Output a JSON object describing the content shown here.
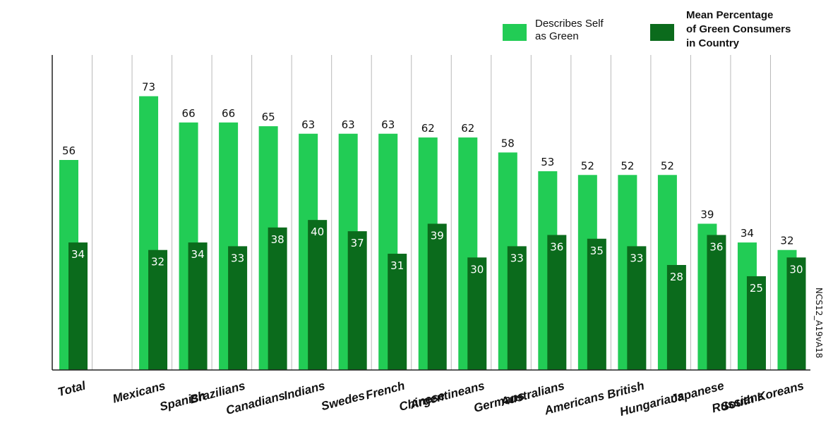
{
  "colors": {
    "light": "#22cc55",
    "dark": "#0b6b1c",
    "grid": "#b9b9b9",
    "axis": "#222222"
  },
  "legend": {
    "describes_label_line1": "Describes Self",
    "describes_label_line2": "as Green",
    "mean_label_line1": "Mean Percentage",
    "mean_label_line2": "of Green Consumers",
    "mean_label_line3": "in Country"
  },
  "side_label": "NCS12_A19vA18",
  "chart_data": {
    "type": "bar",
    "categories": [
      "Total",
      "",
      "Mexicans",
      "Spanish",
      "Brazilians",
      "Canadians",
      "Indians",
      "Swedes",
      "French",
      "Chinese",
      "Argentineans",
      "Germans",
      "Australians",
      "Americans",
      "British",
      "Hungarians",
      "Japanese",
      "Russians",
      "South Koreans"
    ],
    "series": [
      {
        "name": "Describes Self as Green",
        "values": [
          56,
          null,
          73,
          66,
          66,
          65,
          63,
          63,
          63,
          62,
          62,
          58,
          53,
          52,
          52,
          52,
          39,
          34,
          32
        ]
      },
      {
        "name": "Mean Percentage of Green Consumers in Country",
        "values": [
          34,
          null,
          32,
          34,
          33,
          38,
          40,
          37,
          31,
          39,
          30,
          33,
          36,
          35,
          33,
          28,
          36,
          25,
          30
        ]
      }
    ],
    "ylim": [
      0,
      84
    ],
    "grid": "vertical separators",
    "legend_position": "top-right"
  }
}
